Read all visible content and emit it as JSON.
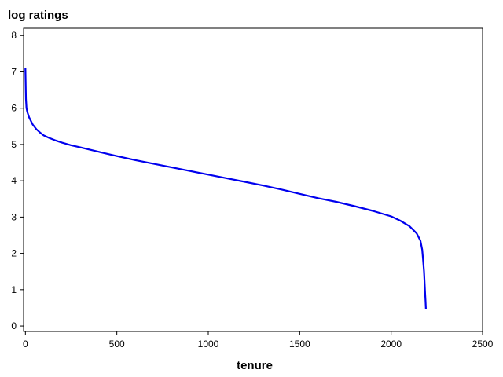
{
  "chart_data": {
    "type": "line",
    "title": "",
    "ylabel": "log ratings",
    "xlabel": "tenure",
    "xlim": [
      -10,
      2500
    ],
    "ylim": [
      -0.15,
      8.2
    ],
    "xticks": [
      0,
      500,
      1000,
      1500,
      2000,
      2500
    ],
    "yticks": [
      0,
      1,
      2,
      3,
      4,
      5,
      6,
      7,
      8
    ],
    "grid": false,
    "legend": "none",
    "series": [
      {
        "color": "#0000ee",
        "x": [
          0,
          3,
          6,
          10,
          20,
          40,
          60,
          80,
          100,
          130,
          160,
          200,
          250,
          300,
          400,
          500,
          600,
          700,
          800,
          900,
          1000,
          1100,
          1200,
          1300,
          1400,
          1500,
          1600,
          1700,
          1800,
          1900,
          2000,
          2050,
          2100,
          2140,
          2160,
          2170,
          2175,
          2180,
          2183,
          2186,
          2188,
          2190
        ],
        "y": [
          7.1,
          6.25,
          6.0,
          5.9,
          5.75,
          5.55,
          5.42,
          5.33,
          5.25,
          5.18,
          5.12,
          5.05,
          4.98,
          4.92,
          4.8,
          4.68,
          4.57,
          4.47,
          4.37,
          4.27,
          4.17,
          4.07,
          3.97,
          3.87,
          3.76,
          3.64,
          3.52,
          3.42,
          3.3,
          3.17,
          3.02,
          2.9,
          2.75,
          2.55,
          2.35,
          2.1,
          1.8,
          1.5,
          1.2,
          0.9,
          0.7,
          0.47
        ]
      }
    ]
  }
}
